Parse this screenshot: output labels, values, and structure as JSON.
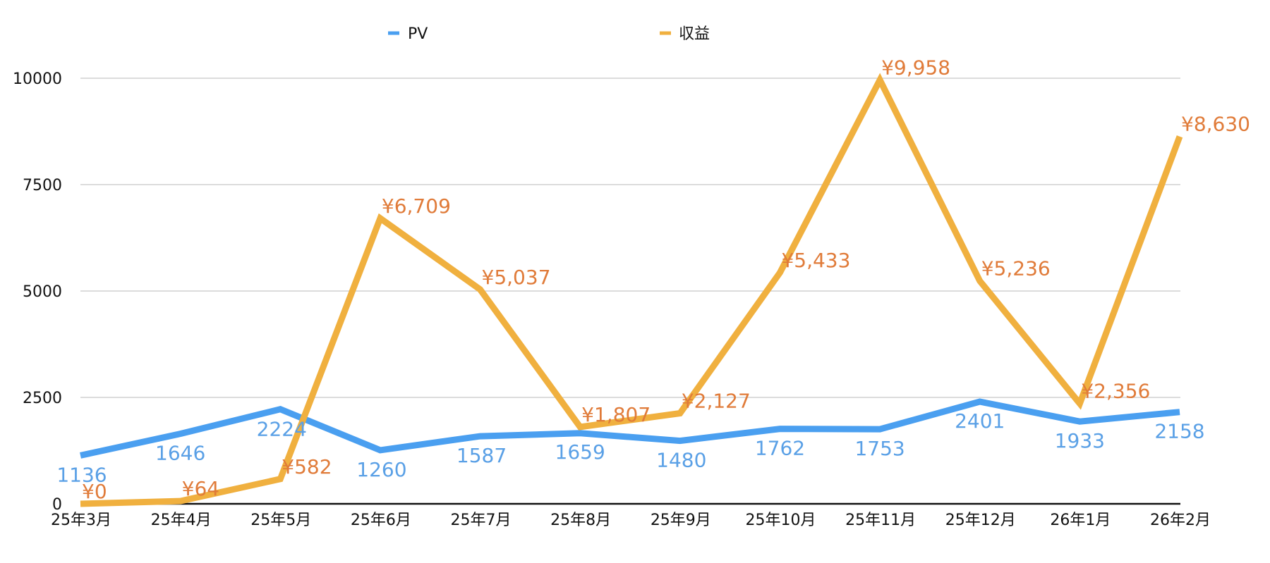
{
  "chart_data": {
    "type": "line",
    "title": "",
    "xlabel": "",
    "ylabel": "",
    "categories": [
      "25年3月",
      "25年4月",
      "25年5月",
      "25年6月",
      "25年7月",
      "25年8月",
      "25年9月",
      "25年10月",
      "25年11月",
      "25年12月",
      "26年1月",
      "26年2月"
    ],
    "series": [
      {
        "name": "PV",
        "color": "#4A9FF0",
        "label_color": "#5AA0E6",
        "values": [
          1136,
          1646,
          2224,
          1260,
          1587,
          1659,
          1480,
          1762,
          1753,
          2401,
          1933,
          2158
        ],
        "labels": [
          "1136",
          "1646",
          "2224",
          "1260",
          "1587",
          "1659",
          "1480",
          "1762",
          "1753",
          "2401",
          "1933",
          "2158"
        ]
      },
      {
        "name": "収益",
        "color": "#F0B03F",
        "label_color": "#E07B39",
        "values": [
          0,
          64,
          582,
          6709,
          5037,
          1807,
          2127,
          5433,
          9958,
          5236,
          2356,
          8630
        ],
        "labels": [
          "¥0",
          "¥64",
          "¥582",
          "¥6,709",
          "¥5,037",
          "¥1,807",
          "¥2,127",
          "¥5,433",
          "¥9,958",
          "¥5,236",
          "¥2,356",
          "¥8,630"
        ]
      }
    ],
    "ylim": [
      0,
      10000
    ],
    "yticks": [
      0,
      2500,
      5000,
      7500,
      10000
    ],
    "ytick_labels": [
      "0",
      "2500",
      "5000",
      "7500",
      "10000"
    ],
    "grid": true,
    "legend_position": "top"
  },
  "legend": {
    "items": [
      {
        "label": "PV",
        "color": "#4A9FF0"
      },
      {
        "label": "収益",
        "color": "#F0B03F"
      }
    ]
  }
}
